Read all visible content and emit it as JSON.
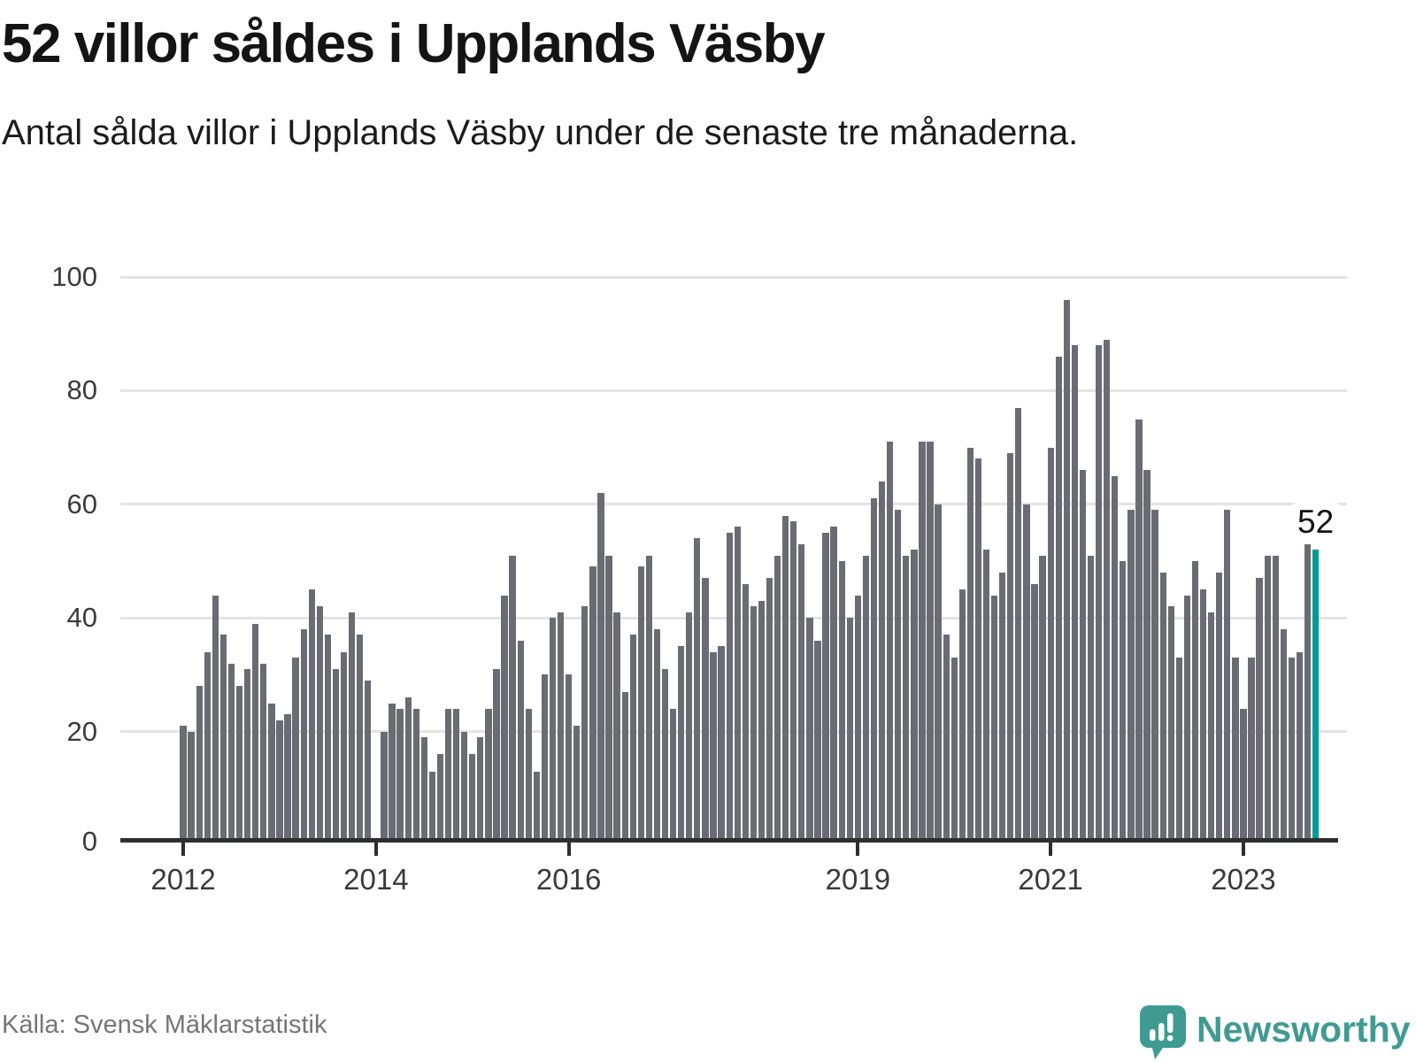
{
  "header": {
    "title": "52 villor såldes i Upplands Väsby",
    "subtitle": "Antal sålda villor i Upplands Väsby under de senaste tre månaderna."
  },
  "footer": {
    "source": "Källa: Svensk Mäklarstatistik",
    "brand": "Newsworthy",
    "logo_icon": "newsworthy-speech-bubble-bar-chart-icon"
  },
  "colors": {
    "bar": "#6B6B73",
    "highlight": "#009B94",
    "brand_teal": "#3F9B92",
    "grid": "#E4E4E4",
    "axis": "#2E2E2E",
    "title_text": "#141414",
    "tick_text": "#3A3A3A",
    "source_text": "#757575"
  },
  "chart_data": {
    "type": "bar",
    "title": "52 villor såldes i Upplands Väsby",
    "subtitle": "Antal sålda villor i Upplands Väsby under de senaste tre månaderna.",
    "xlabel": "",
    "ylabel": "",
    "ylim": [
      0,
      100
    ],
    "y_ticks": [
      0,
      20,
      40,
      60,
      80,
      100
    ],
    "grid": true,
    "legend_position": "none",
    "x_unit": "month",
    "x_tick_labels": [
      "2012",
      "2014",
      "2016",
      "2019",
      "2021",
      "2023"
    ],
    "x_tick_indices": [
      0,
      24,
      48,
      84,
      108,
      132
    ],
    "annotation_label": "52",
    "highlight_index": 141,
    "highlight_value": 52,
    "values": [
      21,
      20,
      28,
      34,
      44,
      37,
      32,
      28,
      31,
      39,
      32,
      25,
      22,
      23,
      33,
      38,
      45,
      42,
      37,
      31,
      34,
      41,
      37,
      29,
      null,
      20,
      25,
      24,
      26,
      24,
      19,
      13,
      16,
      24,
      24,
      20,
      16,
      19,
      24,
      31,
      44,
      51,
      36,
      24,
      13,
      30,
      40,
      41,
      30,
      21,
      42,
      49,
      62,
      51,
      41,
      27,
      37,
      49,
      51,
      38,
      31,
      24,
      35,
      41,
      54,
      47,
      34,
      35,
      55,
      56,
      46,
      42,
      43,
      47,
      51,
      58,
      57,
      53,
      40,
      36,
      55,
      56,
      50,
      40,
      44,
      51,
      61,
      64,
      71,
      59,
      51,
      52,
      71,
      71,
      60,
      37,
      33,
      45,
      70,
      68,
      52,
      44,
      48,
      69,
      77,
      60,
      46,
      51,
      70,
      86,
      96,
      88,
      66,
      51,
      88,
      89,
      65,
      50,
      59,
      75,
      66,
      59,
      48,
      42,
      33,
      44,
      50,
      45,
      41,
      48,
      59,
      33,
      24,
      33,
      47,
      51,
      51,
      38,
      33,
      34,
      53,
      52
    ]
  }
}
